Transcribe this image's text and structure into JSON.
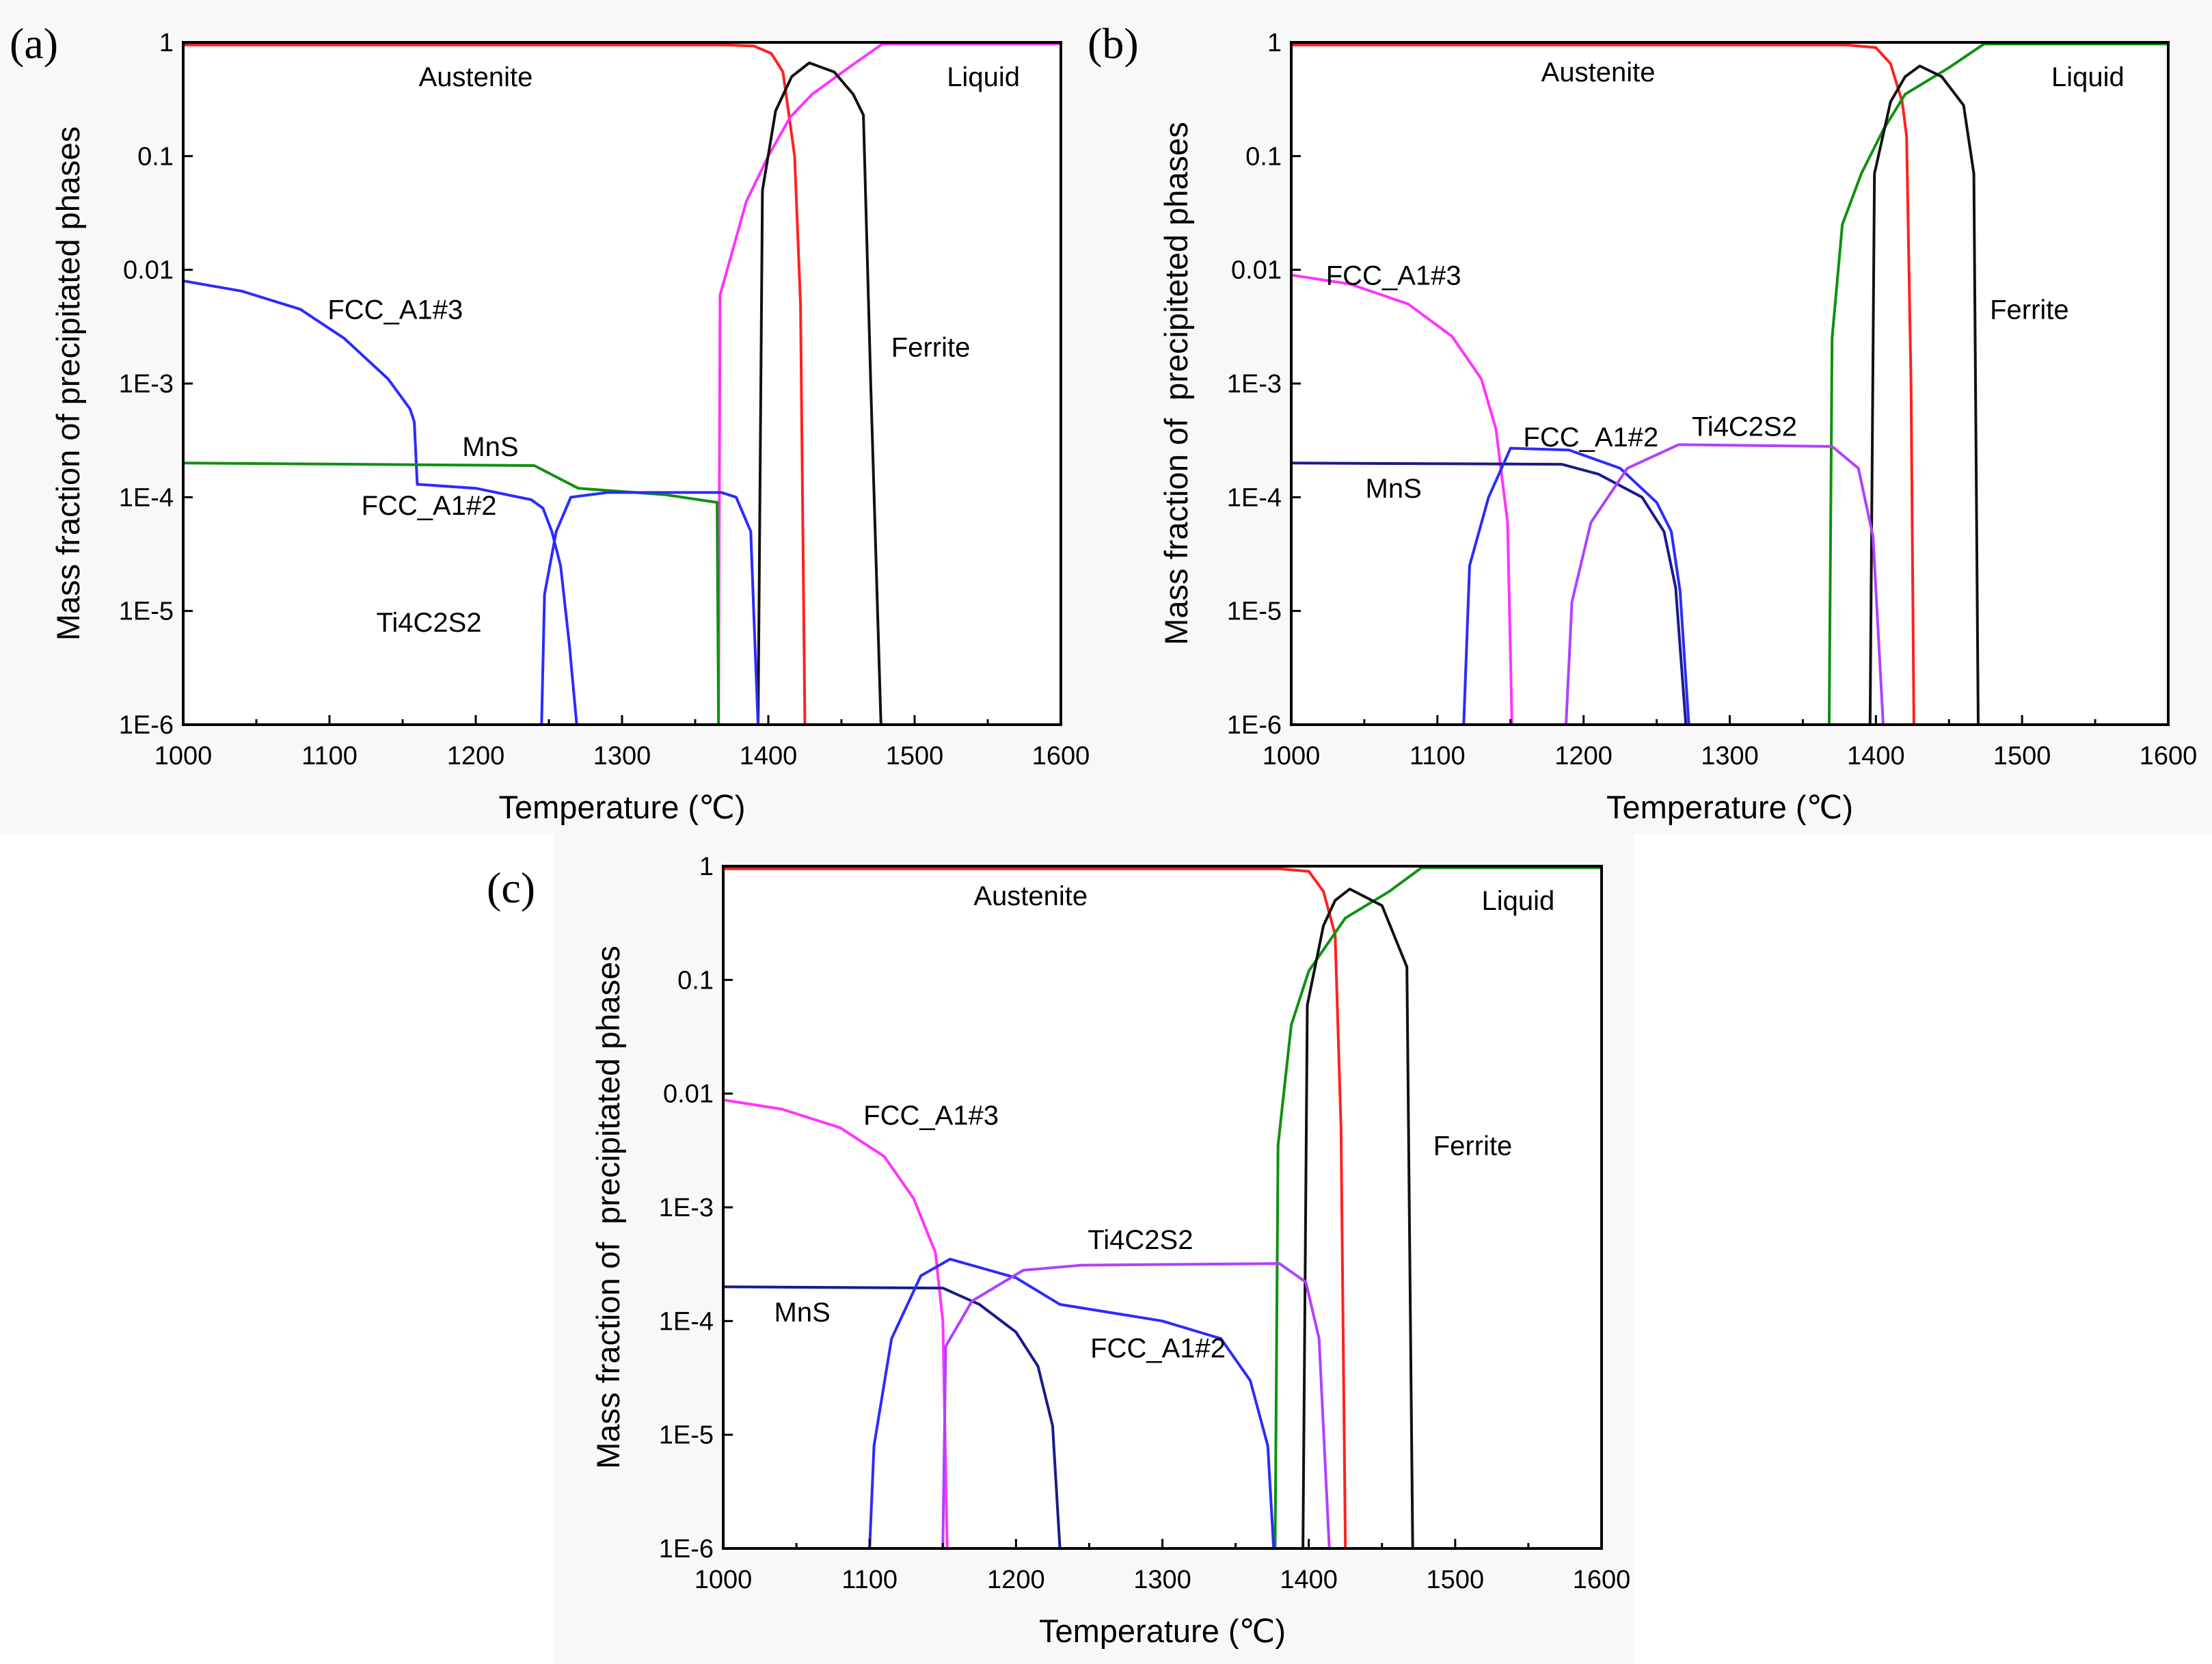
{
  "chart_data": [
    {
      "type": "line",
      "panel_label": "(a)",
      "xlabel": "Temperature (℃)",
      "ylabel": "Mass fraction of precipitated phases",
      "xlim": [
        1000,
        1600
      ],
      "ylim": [
        1e-06,
        1
      ],
      "yscale": "log",
      "xticks": [
        "1000",
        "1100",
        "1200",
        "1300",
        "1400",
        "1500",
        "1600"
      ],
      "yticks": [
        "1E-6",
        "1E-5",
        "1E-4",
        "1E-3",
        "0.01",
        "0.1",
        "1"
      ],
      "series": [
        {
          "name": "Austenite",
          "color": "#ff2020",
          "points": [
            [
              1000,
              0.95
            ],
            [
              1370,
              0.95
            ],
            [
              1390,
              0.93
            ],
            [
              1402,
              0.8
            ],
            [
              1410,
              0.55
            ],
            [
              1418,
              0.1
            ],
            [
              1422,
              0.005
            ],
            [
              1425,
              1e-06
            ]
          ]
        },
        {
          "name": "Liquid",
          "color": "#ff33ff",
          "points": [
            [
              1366,
              1e-06
            ],
            [
              1367,
              0.006
            ],
            [
              1385,
              0.04
            ],
            [
              1400,
              0.1
            ],
            [
              1415,
              0.22
            ],
            [
              1430,
              0.35
            ],
            [
              1455,
              0.6
            ],
            [
              1478,
              0.97
            ],
            [
              1600,
              0.97
            ]
          ]
        },
        {
          "name": "Ferrite",
          "color": "#111111",
          "points": [
            [
              1393,
              1e-06
            ],
            [
              1396,
              0.05
            ],
            [
              1405,
              0.25
            ],
            [
              1416,
              0.5
            ],
            [
              1428,
              0.66
            ],
            [
              1445,
              0.55
            ],
            [
              1458,
              0.35
            ],
            [
              1465,
              0.23
            ],
            [
              1470,
              0.001
            ],
            [
              1477,
              1e-06
            ]
          ]
        },
        {
          "name": "FCC_A1#3",
          "color": "#2b2bff",
          "points": [
            [
              1000,
              0.008
            ],
            [
              1040,
              0.0065
            ],
            [
              1080,
              0.0045
            ],
            [
              1110,
              0.0025
            ],
            [
              1140,
              0.0011
            ],
            [
              1155,
              0.0006
            ],
            [
              1158,
              0.00046
            ],
            [
              1160,
              0.00013
            ],
            [
              1200,
              0.00012
            ],
            [
              1238,
              9.5e-05
            ],
            [
              1246,
              8e-05
            ],
            [
              1252,
              5e-05
            ],
            [
              1258,
              2.5e-05
            ],
            [
              1264,
              5e-06
            ],
            [
              1269,
              1e-06
            ]
          ]
        },
        {
          "name": "MnS",
          "color": "#109010",
          "points": [
            [
              1000,
              0.0002
            ],
            [
              1240,
              0.00019
            ],
            [
              1270,
              0.00012
            ],
            [
              1330,
              0.000105
            ],
            [
              1365,
              9e-05
            ],
            [
              1366,
              1e-06
            ]
          ]
        },
        {
          "name": "FCC_A1#2",
          "color": "#2b2bff",
          "points": [
            [
              1245,
              1e-06
            ],
            [
              1247,
              1.4e-05
            ],
            [
              1255,
              5e-05
            ],
            [
              1265,
              0.0001
            ],
            [
              1290,
              0.00011
            ],
            [
              1368,
              0.00011
            ],
            [
              1378,
              0.0001
            ],
            [
              1388,
              5e-05
            ],
            [
              1390,
              1e-05
            ],
            [
              1393,
              1e-06
            ]
          ]
        }
      ],
      "annotations": [
        {
          "text": "Austenite",
          "x": 1200,
          "y": 0.5
        },
        {
          "text": "Liquid",
          "x": 1547,
          "y": 0.5
        },
        {
          "text": "Ferrite",
          "x": 1511,
          "y": 0.0021
        },
        {
          "text": "FCC_A1#3",
          "x": 1145,
          "y": 0.0045
        },
        {
          "text": "MnS",
          "x": 1210,
          "y": 0.00028
        },
        {
          "text": "FCC_A1#2",
          "x": 1168,
          "y": 8.5e-05
        },
        {
          "text": "Ti4C2S2",
          "x": 1168,
          "y": 8e-06
        }
      ]
    },
    {
      "type": "line",
      "panel_label": "(b)",
      "xlabel": "Temperature (℃)",
      "ylabel": "Mass fraction of  precipiteted phases",
      "xlim": [
        1000,
        1600
      ],
      "ylim": [
        1e-06,
        1
      ],
      "yscale": "log",
      "xticks": [
        "1000",
        "1100",
        "1200",
        "1300",
        "1400",
        "1500",
        "1600"
      ],
      "yticks": [
        "1E-6",
        "1E-5",
        "1E-4",
        "1E-3",
        "0.01",
        "0.1",
        "1"
      ],
      "series": [
        {
          "name": "Austenite",
          "color": "#ff2020",
          "points": [
            [
              1000,
              0.95
            ],
            [
              1380,
              0.95
            ],
            [
              1400,
              0.9
            ],
            [
              1410,
              0.65
            ],
            [
              1418,
              0.3
            ],
            [
              1421,
              0.15
            ],
            [
              1424,
              0.001
            ],
            [
              1426,
              1e-06
            ]
          ]
        },
        {
          "name": "Liquid",
          "color": "#109010",
          "points": [
            [
              1368,
              1e-06
            ],
            [
              1370,
              0.0025
            ],
            [
              1377,
              0.025
            ],
            [
              1390,
              0.07
            ],
            [
              1405,
              0.17
            ],
            [
              1420,
              0.35
            ],
            [
              1450,
              0.6
            ],
            [
              1474,
              0.97
            ],
            [
              1600,
              0.97
            ]
          ]
        },
        {
          "name": "Ferrite",
          "color": "#111111",
          "points": [
            [
              1396,
              1e-06
            ],
            [
              1399,
              0.07
            ],
            [
              1410,
              0.3
            ],
            [
              1420,
              0.5
            ],
            [
              1430,
              0.62
            ],
            [
              1445,
              0.5
            ],
            [
              1460,
              0.28
            ],
            [
              1467,
              0.07
            ],
            [
              1470,
              1e-06
            ]
          ]
        },
        {
          "name": "FCC_A1#3",
          "color": "#ff33ff",
          "points": [
            [
              1000,
              0.009
            ],
            [
              1040,
              0.0075
            ],
            [
              1080,
              0.005
            ],
            [
              1110,
              0.0026
            ],
            [
              1130,
              0.0011
            ],
            [
              1140,
              0.0004
            ],
            [
              1148,
              6e-05
            ],
            [
              1151,
              1e-06
            ]
          ]
        },
        {
          "name": "MnS",
          "color": "#1a1a8a",
          "points": [
            [
              1000,
              0.0002
            ],
            [
              1185,
              0.000195
            ],
            [
              1210,
              0.00016
            ],
            [
              1240,
              0.0001
            ],
            [
              1255,
              5e-05
            ],
            [
              1263,
              1.6e-05
            ],
            [
              1270,
              1e-06
            ]
          ]
        },
        {
          "name": "FCC_A1#2",
          "color": "#2b2bff",
          "points": [
            [
              1118,
              1e-06
            ],
            [
              1122,
              2.5e-05
            ],
            [
              1135,
              0.0001
            ],
            [
              1150,
              0.00027
            ],
            [
              1190,
              0.00026
            ],
            [
              1225,
              0.00018
            ],
            [
              1250,
              9e-05
            ],
            [
              1260,
              5e-05
            ],
            [
              1266,
              1.5e-05
            ],
            [
              1272,
              1e-06
            ]
          ]
        },
        {
          "name": "Ti4C2S2",
          "color": "#b040ff",
          "points": [
            [
              1188,
              1e-06
            ],
            [
              1192,
              1.2e-05
            ],
            [
              1205,
              6e-05
            ],
            [
              1230,
              0.00018
            ],
            [
              1265,
              0.00029
            ],
            [
              1370,
              0.00028
            ],
            [
              1388,
              0.00018
            ],
            [
              1398,
              4.5e-05
            ],
            [
              1405,
              1e-06
            ]
          ]
        }
      ],
      "annotations": [
        {
          "text": "Austenite",
          "x": 1210,
          "y": 0.55
        },
        {
          "text": "Liquid",
          "x": 1545,
          "y": 0.5
        },
        {
          "text": "Ferrite",
          "x": 1505,
          "y": 0.0045
        },
        {
          "text": "FCC_A1#3",
          "x": 1070,
          "y": 0.009
        },
        {
          "text": "FCC_A1#2",
          "x": 1205,
          "y": 0.00034
        },
        {
          "text": "Ti4C2S2",
          "x": 1310,
          "y": 0.00042
        },
        {
          "text": "MnS",
          "x": 1070,
          "y": 0.00012
        }
      ]
    },
    {
      "type": "line",
      "panel_label": "(c)",
      "xlabel": "Temperature (℃)",
      "ylabel": "Mass fraction of  precipitated phases",
      "xlim": [
        1000,
        1600
      ],
      "ylim": [
        1e-06,
        1
      ],
      "yscale": "log",
      "xticks": [
        "1000",
        "1100",
        "1200",
        "1300",
        "1400",
        "1500",
        "1600"
      ],
      "yticks": [
        "1E-6",
        "1E-5",
        "1E-4",
        "1E-3",
        "0.01",
        "0.1",
        "1"
      ],
      "series": [
        {
          "name": "Austenite",
          "color": "#ff2020",
          "points": [
            [
              1000,
              0.95
            ],
            [
              1380,
              0.95
            ],
            [
              1400,
              0.9
            ],
            [
              1410,
              0.6
            ],
            [
              1418,
              0.25
            ],
            [
              1422,
              0.005
            ],
            [
              1425,
              1e-06
            ]
          ]
        },
        {
          "name": "Liquid",
          "color": "#109010",
          "points": [
            [
              1377,
              1e-06
            ],
            [
              1379,
              0.0035
            ],
            [
              1388,
              0.04
            ],
            [
              1400,
              0.12
            ],
            [
              1425,
              0.35
            ],
            [
              1455,
              0.6
            ],
            [
              1477,
              0.97
            ],
            [
              1600,
              0.97
            ]
          ]
        },
        {
          "name": "Ferrite",
          "color": "#111111",
          "points": [
            [
              1396,
              1e-06
            ],
            [
              1399,
              0.06
            ],
            [
              1410,
              0.3
            ],
            [
              1418,
              0.5
            ],
            [
              1428,
              0.63
            ],
            [
              1450,
              0.45
            ],
            [
              1467,
              0.13
            ],
            [
              1471,
              1e-06
            ]
          ]
        },
        {
          "name": "FCC_A1#3",
          "color": "#ff33ff",
          "points": [
            [
              1000,
              0.0088
            ],
            [
              1040,
              0.0073
            ],
            [
              1080,
              0.005
            ],
            [
              1110,
              0.0028
            ],
            [
              1130,
              0.0012
            ],
            [
              1145,
              0.0004
            ],
            [
              1150,
              0.0001
            ],
            [
              1153,
              1e-06
            ]
          ]
        },
        {
          "name": "MnS",
          "color": "#1a1a8a",
          "points": [
            [
              1000,
              0.0002
            ],
            [
              1150,
              0.000195
            ],
            [
              1175,
              0.00014
            ],
            [
              1200,
              8e-05
            ],
            [
              1215,
              4e-05
            ],
            [
              1225,
              1.2e-05
            ],
            [
              1230,
              1e-06
            ]
          ]
        },
        {
          "name": "FCC_A1#2",
          "color": "#2b2bff",
          "points": [
            [
              1100,
              1e-06
            ],
            [
              1103,
              8e-06
            ],
            [
              1115,
              7e-05
            ],
            [
              1135,
              0.00025
            ],
            [
              1155,
              0.00035
            ],
            [
              1200,
              0.00024
            ],
            [
              1230,
              0.00014
            ],
            [
              1300,
              0.0001
            ],
            [
              1340,
              7e-05
            ],
            [
              1360,
              3e-05
            ],
            [
              1372,
              8e-06
            ],
            [
              1376,
              1e-06
            ]
          ]
        },
        {
          "name": "Ti4C2S2",
          "color": "#b040ff",
          "points": [
            [
              1150,
              1e-06
            ],
            [
              1152,
              6e-05
            ],
            [
              1170,
              0.00015
            ],
            [
              1205,
              0.00028
            ],
            [
              1245,
              0.00031
            ],
            [
              1380,
              0.00032
            ],
            [
              1398,
              0.00022
            ],
            [
              1407,
              7e-05
            ],
            [
              1414,
              1e-06
            ]
          ]
        }
      ],
      "annotations": [
        {
          "text": "Austenite",
          "x": 1210,
          "y": 0.55
        },
        {
          "text": "Liquid",
          "x": 1543,
          "y": 0.5
        },
        {
          "text": "Ferrite",
          "x": 1512,
          "y": 0.0035
        },
        {
          "text": "FCC_A1#3",
          "x": 1142,
          "y": 0.0065
        },
        {
          "text": "Ti4C2S2",
          "x": 1285,
          "y": 0.00052
        },
        {
          "text": "MnS",
          "x": 1054,
          "y": 0.00012
        },
        {
          "text": "FCC_A1#2",
          "x": 1297,
          "y": 5.8e-05
        }
      ]
    }
  ]
}
